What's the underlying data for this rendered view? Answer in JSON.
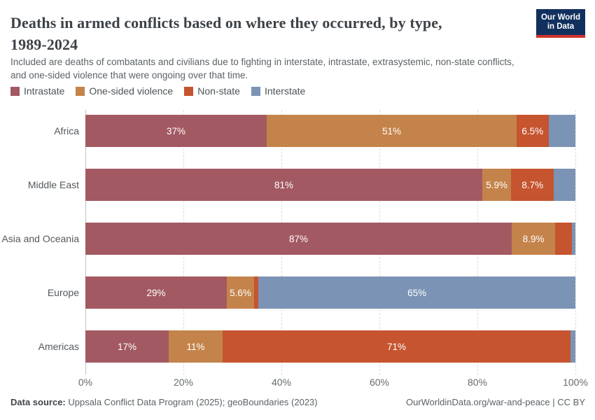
{
  "header": {
    "title_line1": "Deaths in armed conflicts based on where they occurred, by type,",
    "title_line2": "1989-2024",
    "subtitle_line1": "Included are deaths of combatants and civilians due to fighting in interstate, intrastate, extrasystemic, non-state conflicts,",
    "subtitle_line2": "and one-sided violence that were ongoing over that time.",
    "logo": {
      "line1": "Our World",
      "line2": "in Data",
      "bg_color": "#12305e",
      "accent_color": "#d0342c"
    }
  },
  "legend": {
    "items": [
      {
        "label": "Intrastate",
        "color": "#a35962"
      },
      {
        "label": "One-sided violence",
        "color": "#c4834a"
      },
      {
        "label": "Non-state",
        "color": "#c5542f"
      },
      {
        "label": "Interstate",
        "color": "#7b93b5"
      }
    ]
  },
  "chart_data": {
    "type": "bar",
    "orientation": "horizontal",
    "stacked": true,
    "unit": "%",
    "title": "Deaths in armed conflicts based on where they occurred, by type, 1989-2024",
    "categories": [
      "Africa",
      "Middle East",
      "Asia and Oceania",
      "Europe",
      "Americas"
    ],
    "series": [
      {
        "name": "Intrastate",
        "color": "#a35962",
        "values": [
          37,
          81,
          87,
          29,
          17
        ],
        "labels": [
          "37%",
          "81%",
          "87%",
          "29%",
          "17%"
        ]
      },
      {
        "name": "One-sided violence",
        "color": "#c4834a",
        "values": [
          51,
          5.9,
          8.9,
          5.6,
          11
        ],
        "labels": [
          "51%",
          "5.9%",
          "8.9%",
          "5.6%",
          "11%"
        ]
      },
      {
        "name": "Non-state",
        "color": "#c5542f",
        "values": [
          6.5,
          8.7,
          3.4,
          0.9,
          71
        ],
        "labels": [
          "6.5%",
          "8.7%",
          null,
          null,
          "71%"
        ]
      },
      {
        "name": "Interstate",
        "color": "#7b93b5",
        "values": [
          5.5,
          4.4,
          0.7,
          65,
          1
        ],
        "labels": [
          null,
          null,
          null,
          "65%",
          null
        ]
      }
    ],
    "x_ticks": [
      "0%",
      "20%",
      "40%",
      "60%",
      "80%",
      "100%"
    ],
    "xlim": [
      0,
      100
    ],
    "grid": "dashed-vertical",
    "legend_position": "top"
  },
  "footer": {
    "source_label": "Data source:",
    "source_text": " Uppsala Conflict Data Program (2025); geoBoundaries (2023)",
    "attribution": "OurWorldinData.org/war-and-peace | CC BY"
  }
}
